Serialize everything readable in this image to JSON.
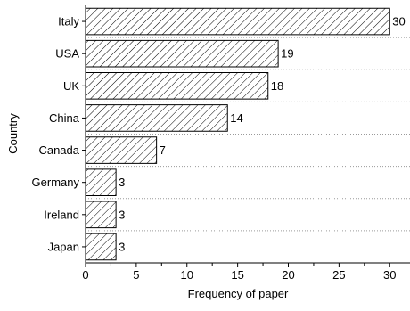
{
  "chart_data": {
    "type": "bar",
    "orientation": "horizontal",
    "categories": [
      "Italy",
      "USA",
      "UK",
      "China",
      "Canada",
      "Germany",
      "Ireland",
      "Japan"
    ],
    "values": [
      30,
      19,
      18,
      14,
      7,
      3,
      3,
      3
    ],
    "value_labels": [
      "30",
      "19",
      "18",
      "14",
      "7",
      "3",
      "3",
      "3"
    ],
    "xlabel": "Frequency of paper",
    "ylabel": "Country",
    "xlim": [
      0,
      32
    ],
    "xticks": [
      0,
      5,
      10,
      15,
      20,
      25,
      30
    ],
    "grid": "horizontal dotted separators between categories",
    "bar_fill": "diagonal hatch",
    "colors": {
      "bar_stroke": "#000000",
      "hatch": "#000000",
      "grid": "#9a9a9a"
    }
  }
}
